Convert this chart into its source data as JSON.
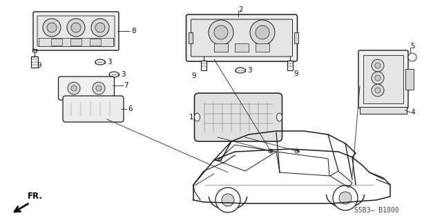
{
  "bg_color": "#ffffff",
  "fig_width": 6.4,
  "fig_height": 3.19,
  "dpi": 100,
  "part_number": "S5B3– B1000",
  "fr_label": "FR.",
  "line_color": "#1a1a1a",
  "text_color": "#111111",
  "gray_fill": "#d8d8d8",
  "light_fill": "#f0f0f0",
  "mid_fill": "#c8c8c8"
}
